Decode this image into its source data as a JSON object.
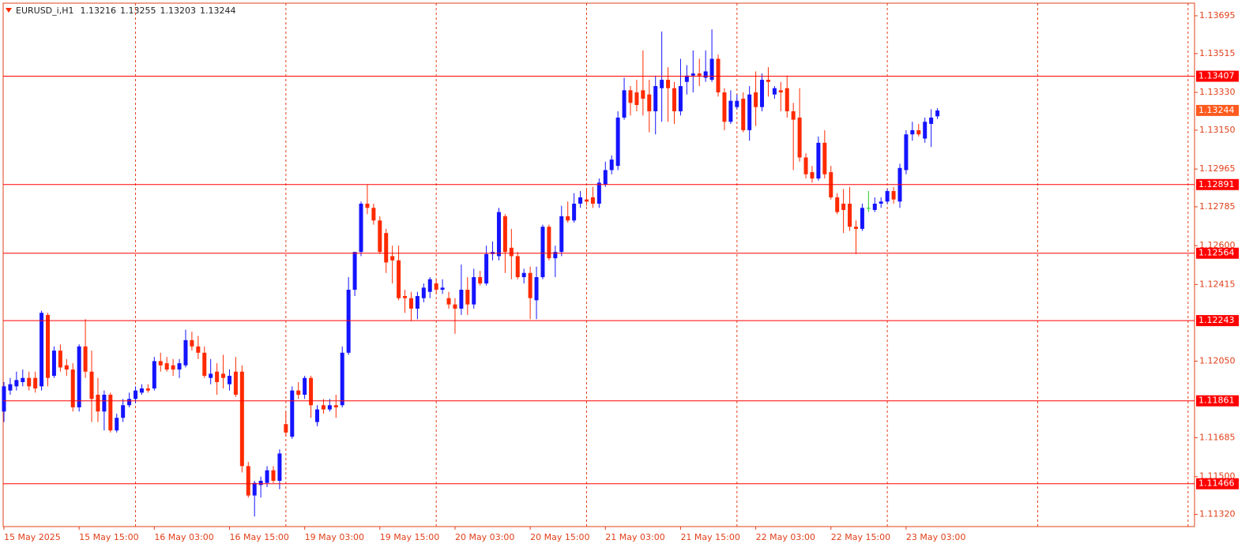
{
  "chart_data": {
    "type": "candlestick",
    "title": "EURUSD_i,H1",
    "categories": [
      "15 May 2025",
      null,
      null,
      null,
      null,
      null,
      null,
      null,
      null,
      null,
      null,
      null,
      "15 May 15:00",
      null,
      null,
      null,
      null,
      null,
      null,
      null,
      null,
      null,
      null,
      null,
      "16 May 03:00",
      null,
      null,
      null,
      null,
      null,
      null,
      null,
      null,
      null,
      null,
      null,
      "16 May 15:00",
      null,
      null,
      null,
      null,
      null,
      null,
      null,
      null,
      null,
      null,
      null,
      "19 May 03:00",
      null,
      null,
      null,
      null,
      null,
      null,
      null,
      null,
      null,
      null,
      null,
      "19 May 15:00",
      null,
      null,
      null,
      null,
      null,
      null,
      null,
      null,
      null,
      null,
      null,
      "20 May 03:00",
      null,
      null,
      null,
      null,
      null,
      null,
      null,
      null,
      null,
      null,
      null,
      "20 May 15:00",
      null,
      null,
      null,
      null,
      null,
      null,
      null,
      null,
      null,
      null,
      null,
      "21 May 03:00",
      null,
      null,
      null,
      null,
      null,
      null,
      null,
      null,
      null,
      null,
      null,
      "21 May 15:00",
      null,
      null,
      null,
      null,
      null,
      null,
      null,
      null,
      null,
      null,
      null,
      "22 May 03:00",
      null,
      null,
      null,
      null,
      null,
      null,
      null,
      null,
      null,
      null,
      null,
      "22 May 15:00",
      null,
      null,
      null,
      null,
      null,
      null,
      null,
      null,
      null,
      null,
      null,
      "23 May 03:00",
      null,
      null,
      null,
      null,
      null
    ],
    "open": [
      1.1181,
      1.1191,
      1.1193,
      1.1195,
      1.1197,
      1.1197,
      1.1193,
      1.1227,
      1.1198,
      1.121,
      1.1203,
      1.1201,
      1.1183,
      1.1212,
      1.12,
      1.1189,
      1.1181,
      1.1189,
      1.1172,
      1.1178,
      1.1184,
      1.1187,
      1.119,
      1.1192,
      1.1192,
      1.1205,
      1.1204,
      1.1203,
      1.1201,
      1.1203,
      1.1215,
      1.1212,
      1.1209,
      1.1197,
      1.12,
      1.1199,
      1.1194,
      1.12,
      1.12,
      1.1155,
      1.1141,
      1.1146,
      1.1147,
      1.1153,
      1.1148,
      1.1175,
      1.1169,
      1.1191,
      1.1189,
      1.1197,
      1.1176,
      1.1184,
      1.1182,
      1.1184,
      1.1184,
      1.1209,
      1.1239,
      1.1257,
      1.128,
      1.1278,
      1.1272,
      1.1266,
      1.1255,
      1.1253,
      1.1236,
      1.1235,
      1.123,
      1.1235,
      1.1238,
      1.1242,
      1.1239,
      1.1235,
      1.1232,
      1.123,
      1.1239,
      1.1232,
      1.1245,
      1.1242,
      1.1256,
      1.1255,
      1.1274,
      1.1259,
      1.1255,
      1.1245,
      1.1247,
      1.1234,
      1.1245,
      1.1269,
      1.1254,
      1.1257,
      1.1274,
      1.1272,
      1.128,
      1.1282,
      1.1283,
      1.128,
      1.1289,
      1.1296,
      1.1298,
      1.1321,
      1.1334,
      1.1333,
      1.1334,
      1.1332,
      1.1324,
      1.1335,
      1.1339,
      1.1335,
      1.1324,
      1.1338,
      1.1341,
      1.1342,
      1.134,
      1.1339,
      1.1349,
      1.1333,
      1.1319,
      1.1326,
      1.133,
      1.1315,
      1.1333,
      1.1326,
      1.1339,
      1.1332,
      1.1334,
      1.1335,
      1.1324,
      1.1321,
      1.1302,
      1.1295,
      1.1292,
      1.1309,
      1.1295,
      1.1283,
      1.128,
      1.128,
      1.1269,
      1.1268,
      1.1278,
      1.1277,
      1.128,
      1.1281,
      1.1286,
      1.1281,
      1.1296,
      1.1313,
      1.1315,
      1.1311,
      1.1318,
      1.13216
    ],
    "high": [
      1.1195,
      1.1197,
      1.12,
      1.1201,
      1.12,
      1.12,
      1.1229,
      1.1228,
      1.1212,
      1.1213,
      1.1206,
      1.1204,
      1.1213,
      1.1225,
      1.121,
      1.1197,
      1.1191,
      1.119,
      1.118,
      1.1187,
      1.119,
      1.1193,
      1.1194,
      1.1194,
      1.1207,
      1.1209,
      1.1207,
      1.1206,
      1.1206,
      1.122,
      1.1219,
      1.1217,
      1.1212,
      1.1206,
      1.1204,
      1.1208,
      1.1201,
      1.1207,
      1.1203,
      1.1157,
      1.1148,
      1.115,
      1.1155,
      1.1155,
      1.1163,
      1.1181,
      1.1193,
      1.1195,
      1.1198,
      1.1198,
      1.1184,
      1.1187,
      1.1187,
      1.1189,
      1.1212,
      1.1245,
      1.1257,
      1.1281,
      1.1289,
      1.128,
      1.1274,
      1.1268,
      1.126,
      1.126,
      1.1239,
      1.1238,
      1.1238,
      1.1242,
      1.1245,
      1.1244,
      1.1244,
      1.1238,
      1.1235,
      1.1251,
      1.1245,
      1.1249,
      1.1248,
      1.126,
      1.1262,
      1.1278,
      1.1275,
      1.1268,
      1.1257,
      1.1249,
      1.125,
      1.125,
      1.127,
      1.127,
      1.126,
      1.1279,
      1.1281,
      1.1285,
      1.1286,
      1.1287,
      1.1288,
      1.1292,
      1.13,
      1.1303,
      1.1324,
      1.134,
      1.1336,
      1.1339,
      1.1353,
      1.1339,
      1.1341,
      1.1362,
      1.1345,
      1.1338,
      1.1349,
      1.1346,
      1.1353,
      1.1349,
      1.1353,
      1.1363,
      1.1351,
      1.1335,
      1.1334,
      1.1332,
      1.1333,
      1.1336,
      1.1343,
      1.1342,
      1.1345,
      1.1336,
      1.1338,
      1.1341,
      1.1328,
      1.1335,
      1.1304,
      1.1298,
      1.1312,
      1.1315,
      1.1298,
      1.1285,
      1.1287,
      1.1288,
      1.1272,
      1.128,
      1.1286,
      1.1283,
      1.1283,
      1.1287,
      1.1288,
      1.1299,
      1.1315,
      1.1319,
      1.1318,
      1.1321,
      1.1325,
      1.13255
    ],
    "low": [
      1.1176,
      1.1189,
      1.1191,
      1.1193,
      1.1191,
      1.119,
      1.1191,
      1.1193,
      1.1197,
      1.12,
      1.1198,
      1.1181,
      1.1181,
      1.1197,
      1.1176,
      1.1176,
      1.1172,
      1.1171,
      1.1171,
      1.1176,
      1.1183,
      1.1185,
      1.1189,
      1.119,
      1.1191,
      1.12,
      1.12,
      1.1198,
      1.1197,
      1.1202,
      1.121,
      1.1206,
      1.1197,
      1.1194,
      1.1189,
      1.1192,
      1.1191,
      1.1188,
      1.1152,
      1.114,
      1.1131,
      1.114,
      1.1145,
      1.1147,
      1.1144,
      1.1169,
      1.1168,
      1.1187,
      1.1187,
      1.1178,
      1.1174,
      1.118,
      1.1181,
      1.1178,
      1.1183,
      1.1208,
      1.1236,
      1.1255,
      1.1275,
      1.127,
      1.1256,
      1.1247,
      1.1242,
      1.1234,
      1.1228,
      1.1224,
      1.1225,
      1.1233,
      1.1235,
      1.1237,
      1.1237,
      1.123,
      1.1218,
      1.1227,
      1.1227,
      1.123,
      1.1241,
      1.1241,
      1.1253,
      1.1253,
      1.1247,
      1.1244,
      1.1244,
      1.1242,
      1.1225,
      1.1225,
      1.1244,
      1.1253,
      1.1245,
      1.1255,
      1.1271,
      1.1271,
      1.1278,
      1.1279,
      1.1278,
      1.1278,
      1.1288,
      1.1294,
      1.1296,
      1.132,
      1.1322,
      1.1324,
      1.1322,
      1.1314,
      1.1313,
      1.1319,
      1.1319,
      1.1318,
      1.1322,
      1.1332,
      1.1333,
      1.1336,
      1.1338,
      1.1338,
      1.1331,
      1.1315,
      1.1318,
      1.1325,
      1.1314,
      1.131,
      1.1317,
      1.1324,
      1.1331,
      1.133,
      1.1324,
      1.1321,
      1.1296,
      1.13,
      1.1292,
      1.129,
      1.1291,
      1.1292,
      1.1282,
      1.1275,
      1.1266,
      1.1267,
      1.1256,
      1.1267,
      1.1276,
      1.1276,
      1.1278,
      1.128,
      1.128,
      1.1278,
      1.1294,
      1.131,
      1.1312,
      1.1309,
      1.1307,
      1.13203
    ],
    "close": [
      1.1193,
      1.1194,
      1.1196,
      1.1197,
      1.1193,
      1.1192,
      1.1228,
      1.1197,
      1.121,
      1.1202,
      1.1201,
      1.1183,
      1.1212,
      1.12,
      1.1187,
      1.1181,
      1.1189,
      1.1172,
      1.1178,
      1.1184,
      1.1187,
      1.1191,
      1.1192,
      1.1191,
      1.1205,
      1.1203,
      1.1201,
      1.1201,
      1.1204,
      1.1215,
      1.1212,
      1.1209,
      1.1198,
      1.1199,
      1.1195,
      1.1197,
      1.1198,
      1.1189,
      1.1155,
      1.1141,
      1.1147,
      1.1148,
      1.1153,
      1.1148,
      1.1161,
      1.1171,
      1.1191,
      1.1189,
      1.1197,
      1.1184,
      1.1182,
      1.1182,
      1.1184,
      1.1183,
      1.1209,
      1.1239,
      1.1257,
      1.128,
      1.1278,
      1.1272,
      1.1257,
      1.1252,
      1.1253,
      1.1235,
      1.1235,
      1.123,
      1.1236,
      1.124,
      1.1244,
      1.1239,
      1.124,
      1.1232,
      1.123,
      1.1239,
      1.1232,
      1.1245,
      1.1242,
      1.1256,
      1.1257,
      1.1276,
      1.1257,
      1.1255,
      1.1245,
      1.1247,
      1.1235,
      1.1245,
      1.1269,
      1.1254,
      1.1257,
      1.1274,
      1.1272,
      1.128,
      1.1283,
      1.1281,
      1.128,
      1.129,
      1.1296,
      1.1301,
      1.1321,
      1.1334,
      1.1328,
      1.1327,
      1.133,
      1.1324,
      1.1336,
      1.1339,
      1.1335,
      1.1324,
      1.1336,
      1.1341,
      1.1342,
      1.1341,
      1.1343,
      1.1349,
      1.1333,
      1.1319,
      1.1329,
      1.1329,
      1.1315,
      1.1332,
      1.1326,
      1.1339,
      1.1338,
      1.1335,
      1.1333,
      1.1324,
      1.132,
      1.1302,
      1.1294,
      1.1292,
      1.1309,
      1.1294,
      1.1283,
      1.1276,
      1.1277,
      1.1269,
      1.1268,
      1.1278,
      1.1278,
      1.128,
      1.1281,
      1.1286,
      1.1282,
      1.1297,
      1.1313,
      1.1315,
      1.1313,
      1.1319,
      1.1321,
      1.13244
    ],
    "up_color": "#1414ff",
    "down_color": "#ff2a00",
    "doji_color": "#22cc22",
    "ylim": [
      1.11262,
      1.13755
    ],
    "yticks": [
      1.13695,
      1.13515,
      {
        "value": 1.1333,
        "label": "1.13330"
      },
      {
        "value": 1.1315,
        "label": "1.13150"
      },
      1.12965,
      1.12785,
      {
        "value": 1.126,
        "label": "1.12600"
      },
      1.12415,
      {
        "value": 1.1205,
        "label": "1.12050"
      },
      1.11685,
      {
        "value": 1.115,
        "label": "1.11500"
      },
      {
        "value": 1.1132,
        "label": "1.11320"
      }
    ],
    "levels": [
      1.13407,
      1.12891,
      1.12564,
      1.12243,
      1.11861,
      1.11466
    ],
    "level_color": "#ff0000",
    "bid_color": "#ff5a1f",
    "axis_color": "#e0401a",
    "grid": true
  }
}
